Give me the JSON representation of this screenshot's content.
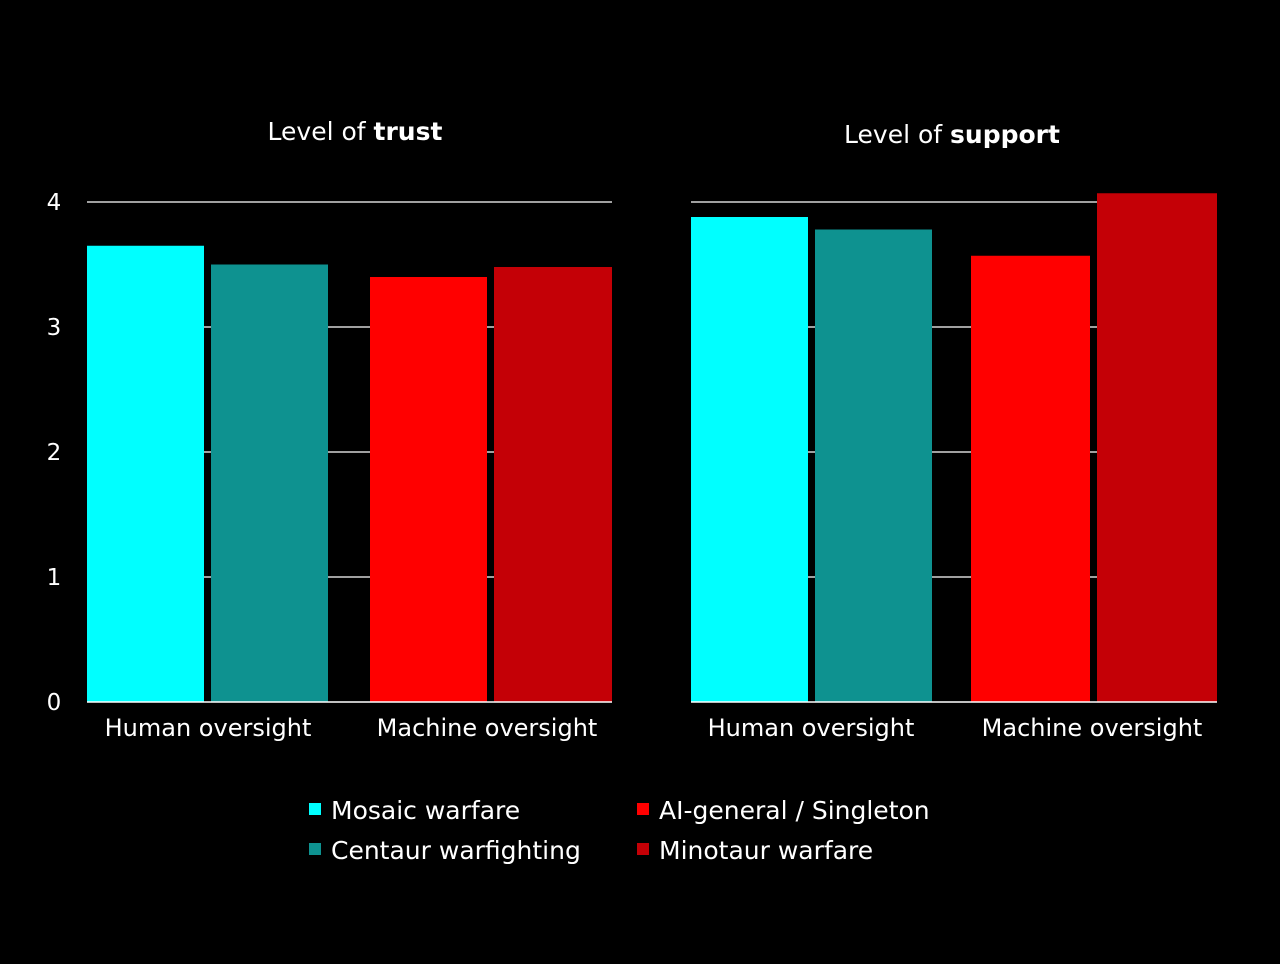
{
  "chart_data": [
    {
      "type": "bar",
      "title_prefix": "Level of ",
      "title_emphasis": "trust",
      "categories": [
        "Human oversight",
        "Machine oversight"
      ],
      "series_by_category": [
        [
          {
            "name": "Mosaic warfare",
            "value": 3.65,
            "color": "#00ffff"
          },
          {
            "name": "Centaur warfighting",
            "value": 3.5,
            "color": "#0e9290"
          }
        ],
        [
          {
            "name": "AI-general / Singleton",
            "value": 3.4,
            "color": "#ff0000"
          },
          {
            "name": "Minotaur warfare",
            "value": 3.48,
            "color": "#c40006"
          }
        ]
      ],
      "yticks": [
        0,
        1,
        2,
        3,
        4
      ],
      "ylim": [
        0,
        4
      ],
      "grid": true,
      "xlabel": "",
      "ylabel": ""
    },
    {
      "type": "bar",
      "title_prefix": "Level of ",
      "title_emphasis": "support",
      "categories": [
        "Human oversight",
        "Machine oversight"
      ],
      "series_by_category": [
        [
          {
            "name": "Mosaic warfare",
            "value": 3.88,
            "color": "#00ffff"
          },
          {
            "name": "Centaur warfighting",
            "value": 3.78,
            "color": "#0e9290"
          }
        ],
        [
          {
            "name": "AI-general / Singleton",
            "value": 3.57,
            "color": "#ff0000"
          },
          {
            "name": "Minotaur warfare",
            "value": 4.07,
            "color": "#c40006"
          }
        ]
      ],
      "yticks": [],
      "ylim": [
        0,
        4
      ],
      "grid": true,
      "xlabel": "",
      "ylabel": ""
    }
  ],
  "legend": {
    "placement": "bottom-center",
    "items": [
      {
        "name": "Mosaic warfare",
        "color": "#00ffff"
      },
      {
        "name": "AI-general / Singleton",
        "color": "#ff0000"
      },
      {
        "name": "Centaur warfighting",
        "color": "#0e9290"
      },
      {
        "name": "Minotaur warfare",
        "color": "#c40006"
      }
    ]
  }
}
